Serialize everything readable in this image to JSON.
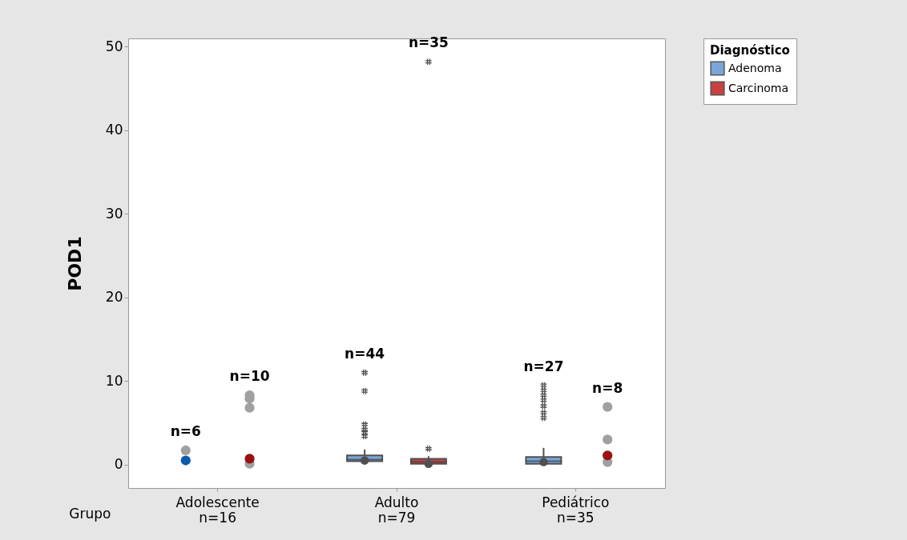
{
  "chart_data": {
    "type": "box",
    "xlabel": "Grupo",
    "ylabel": "POD1",
    "legend_title": "Diagnóstico",
    "legend": "top right",
    "categories": [
      "Adolescente\nn=16",
      "Adulto\nn=79",
      "Pediátrico\nn=35"
    ],
    "ylim": [
      -2.8,
      51
    ],
    "yticks": [
      0,
      10,
      20,
      30,
      40,
      50
    ],
    "series": [
      {
        "name": "Adenoma",
        "color": "#7aa6d9",
        "boxes": [
          null,
          {
            "low": 0,
            "q1": 0.4,
            "median": 0.6,
            "q3": 1.1,
            "high": 1.8,
            "mean": 0.5,
            "outliers": [
              11,
              8.8,
              4.8,
              4.2,
              3.8,
              3.4
            ]
          },
          {
            "low": 0,
            "q1": 0.1,
            "median": 0.4,
            "q3": 0.9,
            "high": 2,
            "mean": 0.3,
            "outliers": [
              9.5,
              8.9,
              8.3,
              7.7,
              7,
              6.2,
              5.6
            ]
          }
        ]
      },
      {
        "name": "Carcinoma",
        "color": "#c84040",
        "boxes": [
          null,
          {
            "low": 0,
            "q1": 0.1,
            "median": 0.3,
            "q3": 0.7,
            "high": 1,
            "mean": 0.1,
            "outliers": [
              48.2,
              1.9
            ]
          },
          null
        ]
      },
      {
        "type": "scatter",
        "color": "#a0a0a0",
        "x": [
          "Adolescente\nn=16"
        ],
        "values": [
          1.7
        ]
      },
      {
        "type": "scatter",
        "color": "#a0a0a0",
        "x": [
          "Adolescente\nn=16",
          "Adolescente\nn=16",
          "Adolescente\nn=16",
          "Adolescente\nn=16",
          "Pediátrico\nn=35",
          "Pediátrico\nn=35",
          "Pediátrico\nn=35"
        ],
        "values": [
          8.3,
          7.9,
          6.8,
          0.1,
          6.9,
          3,
          0.3
        ]
      },
      {
        "type": "scatter",
        "color": "#0b5cad",
        "x": [
          "Adolescente\nn=16"
        ],
        "values": [
          0.5
        ]
      },
      {
        "type": "scatter",
        "color": "#9b1111",
        "x": [
          "Adolescente\nn=16",
          "Pediátrico\nn=35"
        ],
        "values": [
          0.7,
          1.1
        ]
      }
    ],
    "annotations": [
      "n=6",
      "n=10",
      "n=44",
      "n=35",
      "n=27",
      "n=8"
    ]
  }
}
